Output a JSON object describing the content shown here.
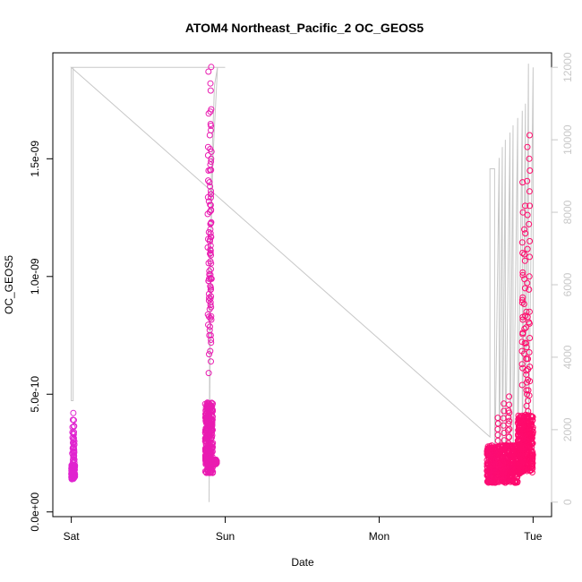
{
  "chart_data": {
    "type": "scatter",
    "title": "ATOM4 Northeast_Pacific_2 OC_GEOS5",
    "xlabel": "Date",
    "ylabel": "OC_GEOS5",
    "x_ticks": [
      "Sat",
      "Sun",
      "Mon",
      "Tue"
    ],
    "y_ticks": [
      "0.0e+00",
      "5.0e-10",
      "1.0e-09",
      "1.5e-09"
    ],
    "y2_ticks": [
      "0",
      "2000",
      "4000",
      "6000",
      "8000",
      "10000",
      "12000"
    ],
    "xlim_days": [
      -0.12,
      3.12
    ],
    "ylim": [
      -2e-11,
      1.95e-09
    ],
    "y2lim": [
      -400,
      12400
    ],
    "grid": false,
    "colors": {
      "points_start": "#e024d0",
      "points_end": "#ff0a6a",
      "altitude_line": "#c8c8c8",
      "axes": "#000000"
    },
    "series": [
      {
        "kind": "points",
        "segments": [
          {
            "x0": 0.0,
            "x1": 0.025,
            "base": 1.6e-10,
            "spread": 6e-11,
            "n": 90,
            "spikes": [
              4.2e-10,
              3.9e-10,
              3.6e-10,
              3.3e-10,
              3e-10,
              2.7e-10,
              2.5e-10
            ]
          },
          {
            "x0": 0.87,
            "x1": 0.92,
            "base": 2.7e-10,
            "spread": 3e-10,
            "n": 320,
            "spikes": [
              1.89e-09,
              1.87e-09,
              1.82e-09,
              1.79e-09,
              1.7e-09,
              1.64e-09,
              1.6e-09,
              1.55e-09,
              1.5e-09,
              1.45e-09,
              1.4e-09,
              1.35e-09,
              1.28e-09,
              1.2e-09,
              1.1e-09,
              9.9e-10
            ]
          },
          {
            "x0": 0.92,
            "x1": 0.945,
            "base": 2.1e-10,
            "spread": 2e-11,
            "n": 60,
            "spikes": []
          },
          {
            "x0": 2.7,
            "x1": 2.9,
            "base": 1.8e-10,
            "spread": 1.6e-10,
            "n": 520,
            "spikes": [
              4.9e-10,
              4.6e-10,
              4.3e-10,
              4e-10
            ]
          },
          {
            "x0": 2.9,
            "x1": 3.0,
            "base": 2.5e-10,
            "spread": 2.5e-10,
            "n": 380,
            "spikes": [
              1.6e-09,
              1.55e-09,
              1.5e-09,
              1.4e-09,
              1.3e-09,
              1.2e-09,
              1.1e-09,
              9e-10,
              8.5e-10,
              8e-10,
              7e-10,
              6.5e-10
            ]
          }
        ]
      },
      {
        "kind": "altitude_line",
        "x": [
          0.0,
          0.0,
          0.012,
          0.012,
          0.02,
          0.02,
          0.95,
          0.95,
          0.92,
          0.9,
          0.895,
          0.91,
          0.93,
          0.95,
          1.0,
          1.0,
          0.0,
          2.72,
          2.72,
          2.75,
          2.75,
          2.78,
          2.78,
          2.8,
          2.8,
          2.82,
          2.82,
          2.85,
          2.85,
          2.87,
          2.87,
          2.9,
          2.9,
          2.93,
          2.93,
          2.95,
          2.95,
          2.97,
          2.97,
          3.0,
          3.0
        ],
        "y": [
          12000,
          2800,
          2800,
          12000,
          12000,
          12000,
          12000,
          12000,
          9500,
          6000,
          0,
          9000,
          11500,
          12000,
          12000,
          12000,
          12000,
          1800,
          9200,
          9200,
          600,
          9500,
          600,
          9800,
          700,
          10000,
          800,
          10200,
          900,
          10400,
          900,
          10600,
          900,
          10800,
          1000,
          11000,
          1000,
          12100,
          1100,
          12000,
          1200
        ]
      }
    ]
  }
}
